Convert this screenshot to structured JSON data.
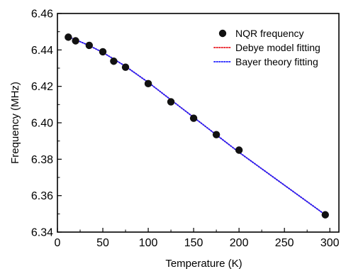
{
  "chart_data": {
    "type": "scatter",
    "xlabel": "Temperature (K)",
    "ylabel": "Frequency (MHz)",
    "xlim": [
      0,
      310
    ],
    "ylim": [
      6.34,
      6.46
    ],
    "xticks": [
      0,
      50,
      100,
      150,
      200,
      250,
      300
    ],
    "yticks": [
      6.34,
      6.36,
      6.38,
      6.4,
      6.42,
      6.44,
      6.46
    ],
    "xtick_labels": [
      "0",
      "50",
      "100",
      "150",
      "200",
      "250",
      "300"
    ],
    "ytick_labels": [
      "6.34",
      "6.36",
      "6.38",
      "6.40",
      "6.42",
      "6.44",
      "6.46"
    ],
    "grid": false,
    "legend_position": "top-right",
    "series": [
      {
        "name": "NQR frequency",
        "kind": "scatter",
        "color": "#111111",
        "x": [
          12,
          20,
          35,
          50,
          62,
          75,
          100,
          125,
          150,
          175,
          200,
          295
        ],
        "y": [
          6.447,
          6.445,
          6.4425,
          6.439,
          6.4338,
          6.4305,
          6.4215,
          6.4115,
          6.4025,
          6.3935,
          6.385,
          6.3495
        ]
      },
      {
        "name": "Debye model fitting",
        "kind": "line",
        "style": "dotted",
        "color": "#e8141c",
        "x": [
          12,
          20,
          35,
          50,
          62,
          75,
          100,
          125,
          150,
          175,
          200,
          295
        ],
        "y": [
          6.4472,
          6.4456,
          6.4424,
          6.4386,
          6.435,
          6.431,
          6.4222,
          6.4126,
          6.403,
          6.3934,
          6.3838,
          6.3495
        ]
      },
      {
        "name": "Bayer theory fitting",
        "kind": "line",
        "style": "dotted",
        "color": "#1a1aff",
        "x": [
          12,
          20,
          35,
          50,
          62,
          75,
          100,
          125,
          150,
          175,
          200,
          295
        ],
        "y": [
          6.4472,
          6.4456,
          6.4424,
          6.4386,
          6.435,
          6.431,
          6.4222,
          6.4126,
          6.403,
          6.3934,
          6.3838,
          6.3495
        ]
      }
    ]
  }
}
